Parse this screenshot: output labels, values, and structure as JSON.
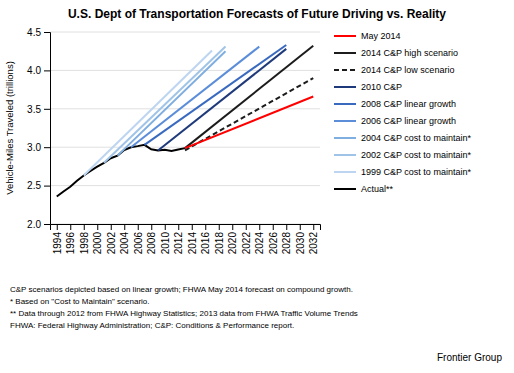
{
  "chart_data": {
    "type": "line",
    "title": "U.S. Dept of Transportation Forecasts of Future Driving vs. Reality",
    "y_label": "Vehicle-Miles Traveled (trillions)",
    "xlim": [
      1993,
      2033
    ],
    "ylim": [
      2.0,
      4.5
    ],
    "xticks": [
      1994,
      1996,
      1998,
      2000,
      2002,
      2004,
      2006,
      2008,
      2010,
      2012,
      2014,
      2016,
      2018,
      2020,
      2022,
      2024,
      2026,
      2028,
      2030,
      2032
    ],
    "yticks": [
      {
        "value": 2.0,
        "label": "2.0"
      },
      2.5,
      {
        "value": 3.0,
        "label": "3.0"
      },
      3.5,
      {
        "value": 4.0,
        "label": "4.0"
      },
      4.5
    ],
    "grid": true,
    "legend": "right",
    "series": [
      {
        "name": "May 2014",
        "color": "#ff0000",
        "line_style": "solid",
        "x": [
          2013,
          2032
        ],
        "values": [
          2.988,
          3.66
        ]
      },
      {
        "name": "2014 C&P high scenario",
        "color": "#1c1c1c",
        "line_style": "solid",
        "x": [
          2013,
          2032
        ],
        "values": [
          2.988,
          4.32
        ]
      },
      {
        "name": "2014 C&P low scenario",
        "color": "#1c1c1c",
        "line_style": "dashed",
        "x": [
          2013,
          2032
        ],
        "values": [
          2.96,
          3.9
        ]
      },
      {
        "name": "2010 C&P",
        "color": "#1f3a7a",
        "line_style": "solid",
        "x": [
          2009,
          2028
        ],
        "values": [
          2.957,
          4.28
        ]
      },
      {
        "name": "2008 C&P linear growth",
        "color": "#3a6abf",
        "line_style": "solid",
        "x": [
          2007,
          2028
        ],
        "values": [
          3.031,
          4.33
        ]
      },
      {
        "name": "2006 C&P linear growth",
        "color": "#5b8dd9",
        "line_style": "solid",
        "x": [
          2005,
          2024
        ],
        "values": [
          3.0,
          4.31
        ]
      },
      {
        "name": "2004 C&P cost to maintain*",
        "color": "#80aee0",
        "line_style": "solid",
        "x": [
          2003,
          2019
        ],
        "values": [
          2.89,
          4.25
        ]
      },
      {
        "name": "2002 C&P cost to maintain*",
        "color": "#a0c4e8",
        "line_style": "solid",
        "x": [
          2001,
          2019
        ],
        "values": [
          2.797,
          4.31
        ]
      },
      {
        "name": "1999 C&P cost to maintain*",
        "color": "#bdd5f0",
        "line_style": "solid",
        "x": [
          1998,
          2017
        ],
        "values": [
          2.632,
          4.26
        ]
      },
      {
        "name": "Actual**",
        "color": "#000000",
        "line_style": "solid",
        "x": [
          1994,
          1995,
          1996,
          1997,
          1998,
          1999,
          2000,
          2001,
          2002,
          2003,
          2004,
          2005,
          2006,
          2007,
          2008,
          2009,
          2010,
          2011,
          2012,
          2013
        ],
        "values": [
          2.358,
          2.423,
          2.485,
          2.562,
          2.632,
          2.691,
          2.747,
          2.797,
          2.856,
          2.89,
          2.964,
          3.0,
          3.014,
          3.031,
          2.973,
          2.957,
          2.967,
          2.95,
          2.969,
          2.988
        ]
      }
    ],
    "annotations": [
      "C&P scenarios depicted based on linear growth; FHWA May 2014 forecast on compound growth.",
      "* Based on \"Cost to Maintain\" scenario.",
      "** Data through 2012 from FHWA Highway Statistics; 2013 data from FHWA Traffic Volume Trends",
      "FHWA: Federal Highway Administration; C&P: Conditions & Performance report.",
      "Frontier Group"
    ]
  }
}
